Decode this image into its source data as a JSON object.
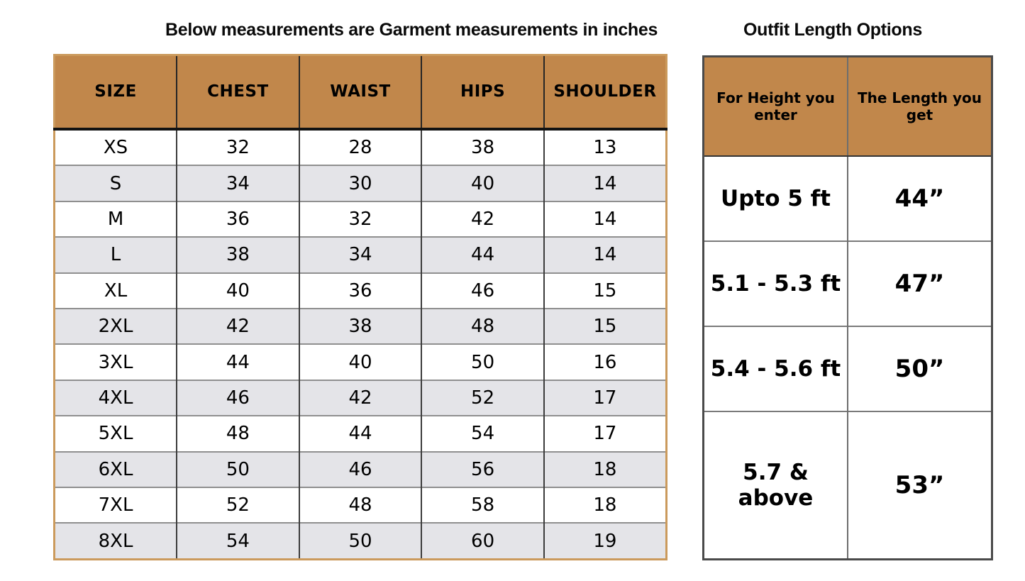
{
  "page": {
    "left_title": "Below measurements are Garment measurements in inches",
    "right_title": "Outfit Length Options"
  },
  "colors": {
    "header_bg": "#c1874b",
    "alt_row_bg": "#e4e4e8",
    "size_table_border": "#cb9a5c",
    "length_table_border": "#4a4a4a"
  },
  "chart_data": [
    {
      "type": "table",
      "title": "Below measurements are Garment measurements in inches",
      "columns": [
        "SIZE",
        "CHEST",
        "WAIST",
        "HIPS",
        "SHOULDER"
      ],
      "rows": [
        [
          "XS",
          "32",
          "28",
          "38",
          "13"
        ],
        [
          "S",
          "34",
          "30",
          "40",
          "14"
        ],
        [
          "M",
          "36",
          "32",
          "42",
          "14"
        ],
        [
          "L",
          "38",
          "34",
          "44",
          "14"
        ],
        [
          "XL",
          "40",
          "36",
          "46",
          "15"
        ],
        [
          "2XL",
          "42",
          "38",
          "48",
          "15"
        ],
        [
          "3XL",
          "44",
          "40",
          "50",
          "16"
        ],
        [
          "4XL",
          "46",
          "42",
          "52",
          "17"
        ],
        [
          "5XL",
          "48",
          "44",
          "54",
          "17"
        ],
        [
          "6XL",
          "50",
          "46",
          "56",
          "18"
        ],
        [
          "7XL",
          "52",
          "48",
          "58",
          "18"
        ],
        [
          "8XL",
          "54",
          "50",
          "60",
          "19"
        ]
      ]
    },
    {
      "type": "table",
      "title": "Outfit Length Options",
      "columns": [
        "For Height you enter",
        "The Length you get"
      ],
      "rows": [
        [
          "Upto 5 ft",
          "44”"
        ],
        [
          "5.1 - 5.3 ft",
          "47”"
        ],
        [
          "5.4 - 5.6 ft",
          "50”"
        ],
        [
          "5.7 & above",
          "53”"
        ]
      ]
    }
  ]
}
